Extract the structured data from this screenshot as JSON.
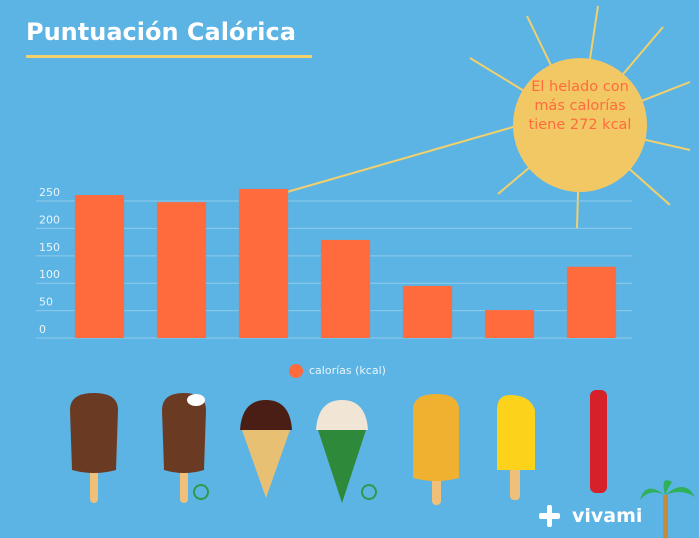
{
  "chart_data": {
    "type": "bar",
    "title": "Puntuación Calórica",
    "categories": [
      null,
      null,
      null,
      null,
      null,
      null,
      null
    ],
    "values": [
      261,
      248,
      272,
      179,
      95,
      51,
      130
    ],
    "color": "#ff6b3d",
    "ylim": [
      0,
      280
    ],
    "yticks": [
      0,
      50,
      100,
      150,
      200,
      250
    ],
    "grid": true,
    "legend": "calorías (kcal)",
    "annotation": "El helado con más calorías tiene 272 kcal",
    "logo": "vivami"
  }
}
